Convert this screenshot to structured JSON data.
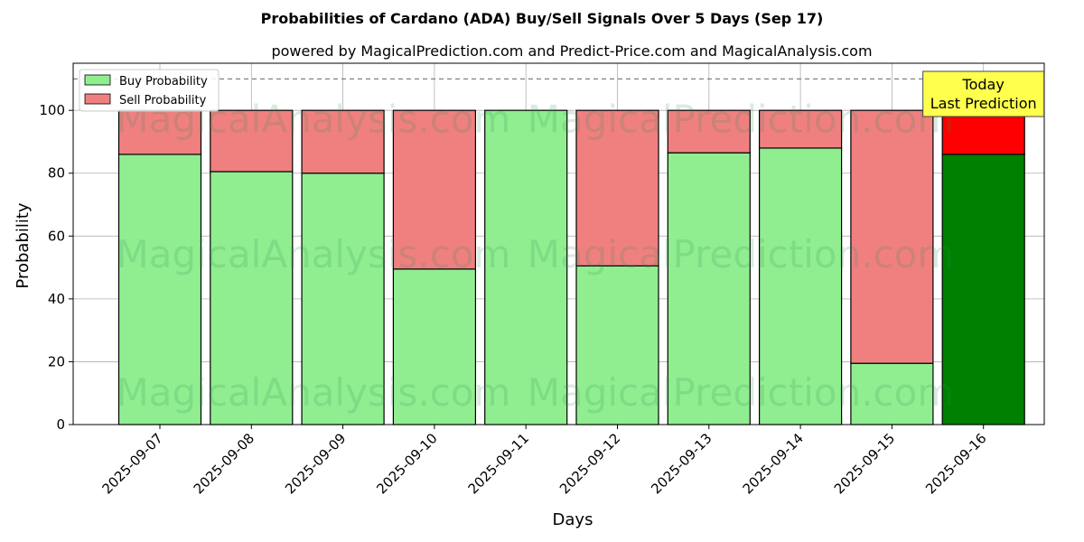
{
  "chart_data": {
    "type": "bar",
    "stacked": true,
    "title": "Probabilities of Cardano (ADA) Buy/Sell Signals Over 5 Days (Sep 17)",
    "subtitle": "powered by MagicalPrediction.com and Predict-Price.com and MagicalAnalysis.com",
    "xlabel": "Days",
    "ylabel": "Probability",
    "ylim": [
      0,
      115
    ],
    "yticks": [
      0,
      20,
      40,
      60,
      80,
      100
    ],
    "reference_line": 110,
    "grid": true,
    "legend_position": "top-left",
    "categories": [
      "2025-09-07",
      "2025-09-08",
      "2025-09-09",
      "2025-09-10",
      "2025-09-11",
      "2025-09-12",
      "2025-09-13",
      "2025-09-14",
      "2025-09-15",
      "2025-09-16"
    ],
    "series": [
      {
        "name": "Buy Probability",
        "color": "#90ee90",
        "highlight_color": "#008000",
        "values": [
          86,
          80.5,
          80,
          49.5,
          100,
          50.5,
          86.5,
          88,
          19.5,
          86
        ]
      },
      {
        "name": "Sell Probability",
        "color": "#f08080",
        "highlight_color": "#ff0000",
        "values": [
          14,
          19.5,
          20,
          50.5,
          0,
          49.5,
          13.5,
          12,
          80.5,
          14
        ]
      }
    ],
    "highlight_index": 9,
    "annotation": {
      "line1": "Today",
      "line2": "Last Prediction",
      "color": "#ffff4d"
    },
    "watermarks": [
      "MagicalAnalysis.com",
      "MagicalPrediction.com"
    ]
  }
}
